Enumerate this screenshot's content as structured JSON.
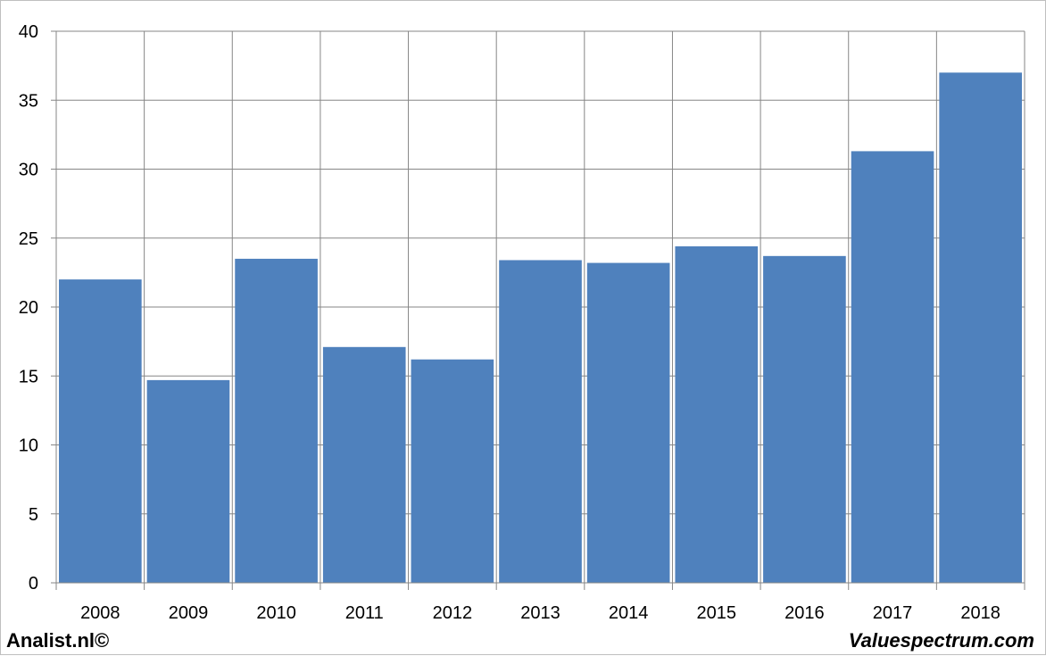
{
  "chart_data": {
    "type": "bar",
    "title": "",
    "xlabel": "",
    "ylabel": "",
    "categories": [
      "2008",
      "2009",
      "2010",
      "2011",
      "2012",
      "2013",
      "2014",
      "2015",
      "2016",
      "2017",
      "2018"
    ],
    "values": [
      22.0,
      14.7,
      23.5,
      17.1,
      16.2,
      23.4,
      23.2,
      24.4,
      23.7,
      31.3,
      37.0
    ],
    "ylim": [
      0,
      40
    ],
    "yticks": [
      0,
      5,
      10,
      15,
      20,
      25,
      30,
      35,
      40
    ],
    "grid": true,
    "legend": "none",
    "bar_color": "#4f81bd",
    "grid_color": "#868686"
  },
  "footer": {
    "left": "Analist.nl©",
    "right": "Valuespectrum.com"
  }
}
